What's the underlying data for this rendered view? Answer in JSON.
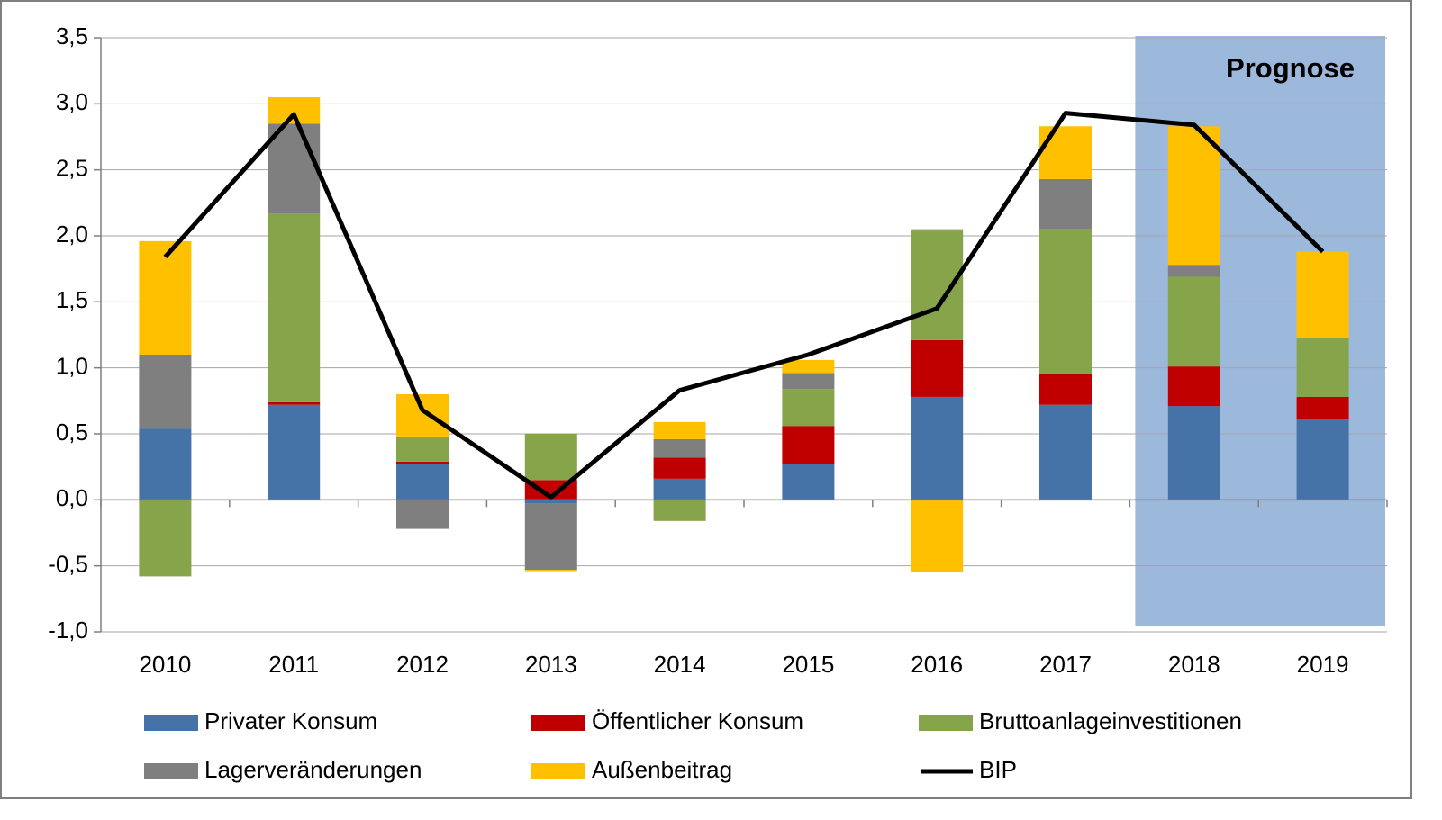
{
  "chart_data": {
    "type": "bar",
    "categories": [
      "2010",
      "2011",
      "2012",
      "2013",
      "2014",
      "2015",
      "2016",
      "2017",
      "2018",
      "2019"
    ],
    "annotation": "Prognose",
    "stacked": true,
    "grid": true,
    "ylim": [
      -1.0,
      3.5
    ],
    "yticks": [
      {
        "value": -1.0,
        "label": "-1,0"
      },
      {
        "value": -0.5,
        "label": "-0,5"
      },
      {
        "value": 0,
        "label": "0,0"
      },
      {
        "value": 0.5,
        "label": "0,5"
      },
      {
        "value": 1.0,
        "label": "1,0"
      },
      {
        "value": 1.5,
        "label": "1,5"
      },
      {
        "value": 2.0,
        "label": "2,0"
      },
      {
        "value": 2.5,
        "label": "2,5"
      },
      {
        "value": 3.0,
        "label": "3,0"
      },
      {
        "value": 3.5,
        "label": "3,5"
      }
    ],
    "series": [
      {
        "name": "Privater Konsum",
        "color": "#4572a7",
        "values": [
          0.54,
          0.72,
          0.27,
          -0.03,
          0.16,
          0.27,
          0.78,
          0.72,
          0.71,
          0.61
        ]
      },
      {
        "name": "Öffentlicher Konsum",
        "color": "#c00000",
        "values": [
          0,
          0.02,
          0.02,
          0.15,
          0.16,
          0.29,
          0.43,
          0.23,
          0.3,
          0.17
        ]
      },
      {
        "name": "Bruttoanlageinvestitionen",
        "color": "#86a44a",
        "values": [
          -0.58,
          1.43,
          0.19,
          0.35,
          -0.16,
          0.28,
          0.83,
          1.1,
          0.68,
          0.45
        ]
      },
      {
        "name": "Lagerveränderungen",
        "color": "#7f7f7f",
        "values": [
          0.56,
          0.68,
          -0.22,
          -0.5,
          0.14,
          0.12,
          0.01,
          0.38,
          0.09,
          0
        ]
      },
      {
        "name": "Außenbeitrag",
        "color": "#ffc000",
        "values": [
          0.86,
          0.2,
          0.32,
          -0.01,
          0.13,
          0.1,
          -0.55,
          0.4,
          1.05,
          0.65
        ]
      },
      {
        "name": "BIP",
        "color": "#000000",
        "type": "line",
        "values": [
          1.84,
          2.92,
          0.68,
          0.02,
          0.83,
          1.1,
          1.45,
          2.93,
          2.84,
          1.88
        ]
      }
    ]
  }
}
